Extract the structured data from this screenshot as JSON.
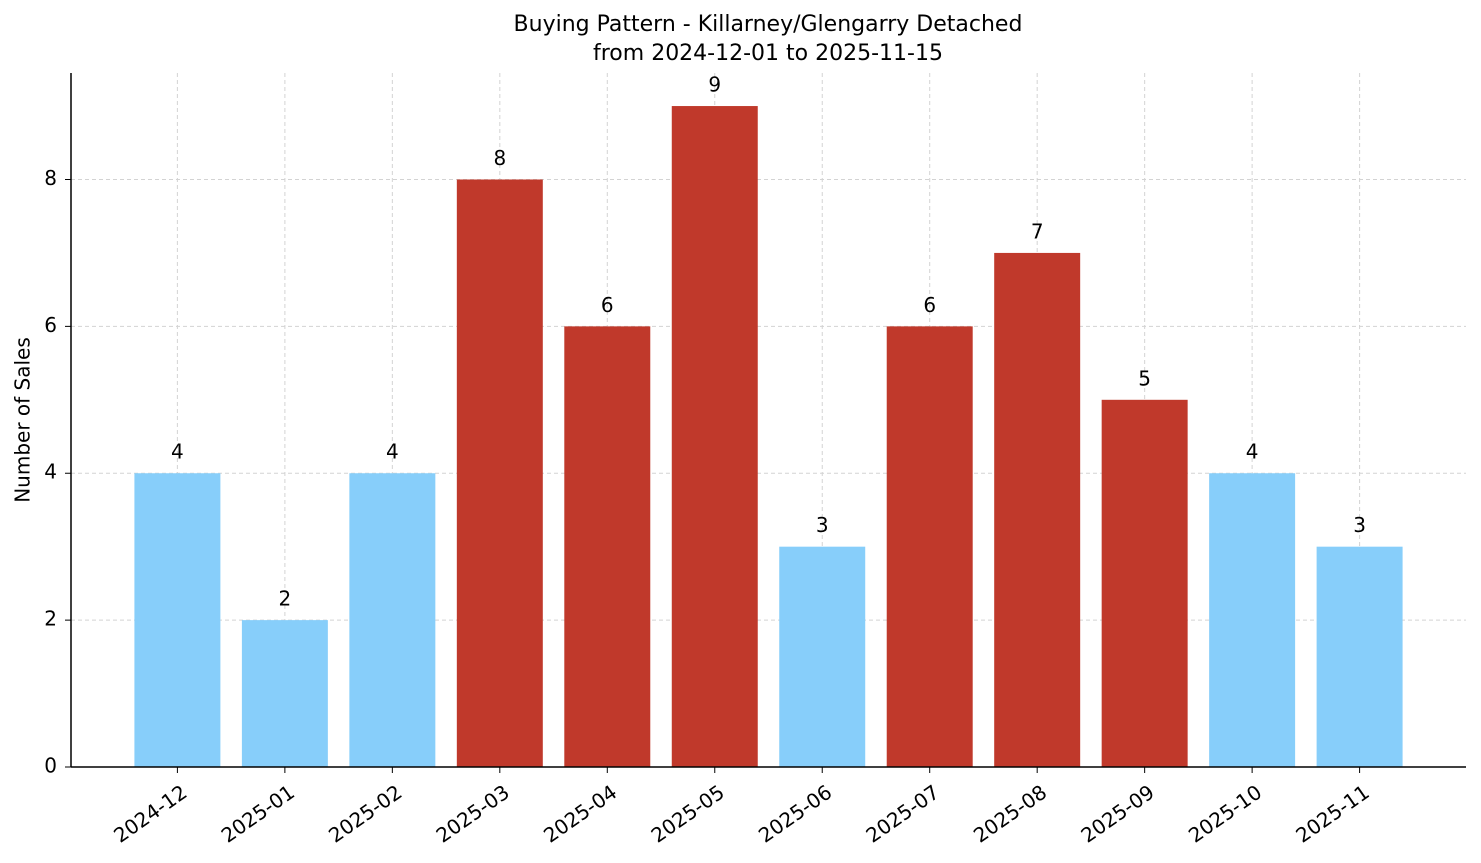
{
  "chart_data": {
    "type": "bar",
    "title": "Buying Pattern - Killarney/Glengarry Detached",
    "subtitle": "from 2024-12-01 to 2025-11-15",
    "y_label": "Number of Sales",
    "categories": [
      "2024-12",
      "2025-01",
      "2025-02",
      "2025-03",
      "2025-04",
      "2025-05",
      "2025-06",
      "2025-07",
      "2025-08",
      "2025-09",
      "2025-10",
      "2025-11"
    ],
    "values": [
      4,
      2,
      4,
      8,
      6,
      9,
      3,
      6,
      7,
      5,
      4,
      3
    ],
    "colors": [
      "#87cefa",
      "#87cefa",
      "#87cefa",
      "#c0392b",
      "#c0392b",
      "#c0392b",
      "#87cefa",
      "#c0392b",
      "#c0392b",
      "#c0392b",
      "#87cefa",
      "#87cefa"
    ],
    "ylim": [
      0,
      9.45
    ],
    "yticks": [
      0,
      2,
      4,
      6,
      8
    ],
    "grid": true
  }
}
